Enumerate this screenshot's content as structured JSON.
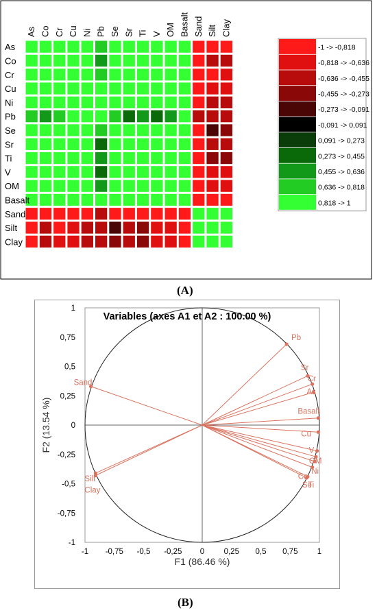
{
  "panel_labels": {
    "a": "(A)",
    "b": "(B)"
  },
  "chart_data": [
    {
      "type": "heatmap",
      "title": "",
      "columns": [
        "As",
        "Co",
        "Cr",
        "Cu",
        "Ni",
        "Pb",
        "Se",
        "Sr",
        "Ti",
        "V",
        "OM",
        "Basalt",
        "Sand",
        "Silt",
        "Clay"
      ],
      "rows": [
        "As",
        "Co",
        "Cr",
        "Cu",
        "Ni",
        "Pb",
        "Se",
        "Sr",
        "Ti",
        "V",
        "OM",
        "Basalt",
        "Sand",
        "Silt",
        "Clay"
      ],
      "values": [
        [
          1,
          0.92,
          0.93,
          0.93,
          0.92,
          0.8,
          0.9,
          0.93,
          0.91,
          0.93,
          0.93,
          0.93,
          -0.9,
          -0.85,
          -0.85
        ],
        [
          0.92,
          1,
          0.92,
          0.88,
          0.92,
          0.5,
          0.9,
          0.92,
          0.9,
          0.92,
          0.92,
          0.92,
          -0.9,
          -0.55,
          -0.55
        ],
        [
          0.93,
          0.92,
          1,
          0.9,
          0.92,
          0.78,
          0.92,
          0.93,
          0.91,
          0.93,
          0.92,
          0.93,
          -0.9,
          -0.82,
          -0.8
        ],
        [
          0.93,
          0.88,
          0.9,
          1,
          0.92,
          0.88,
          0.92,
          0.92,
          0.9,
          0.92,
          0.92,
          0.92,
          -0.9,
          -0.7,
          -0.7
        ],
        [
          0.92,
          0.92,
          0.92,
          0.92,
          1,
          0.85,
          0.92,
          0.92,
          0.9,
          0.92,
          0.92,
          0.92,
          -0.9,
          -0.58,
          -0.58
        ],
        [
          0.8,
          0.5,
          0.78,
          0.88,
          0.85,
          1,
          0.72,
          0.45,
          0.52,
          0.45,
          0.6,
          0.82,
          -0.55,
          -0.58,
          -0.55
        ],
        [
          0.9,
          0.9,
          0.92,
          0.92,
          0.92,
          0.72,
          1,
          0.9,
          0.92,
          0.92,
          0.92,
          0.9,
          -0.92,
          -0.25,
          -0.45
        ],
        [
          0.93,
          0.92,
          0.93,
          0.92,
          0.92,
          0.45,
          0.9,
          1,
          0.88,
          0.92,
          0.92,
          0.92,
          -0.9,
          -0.6,
          -0.6
        ],
        [
          0.91,
          0.9,
          0.91,
          0.9,
          0.9,
          0.52,
          0.92,
          0.88,
          1,
          0.9,
          0.9,
          0.9,
          -0.9,
          -0.4,
          -0.4
        ],
        [
          0.93,
          0.92,
          0.93,
          0.92,
          0.92,
          0.45,
          0.92,
          0.92,
          0.9,
          1,
          0.92,
          0.92,
          -0.9,
          -0.7,
          -0.7
        ],
        [
          0.93,
          0.92,
          0.92,
          0.92,
          0.92,
          0.6,
          0.92,
          0.92,
          0.9,
          0.92,
          1,
          0.92,
          -0.9,
          -0.65,
          -0.65
        ],
        [
          0.93,
          0.92,
          0.93,
          0.92,
          0.92,
          0.82,
          0.9,
          0.92,
          0.9,
          0.92,
          0.92,
          1,
          -0.9,
          -0.82,
          -0.82
        ],
        [
          -0.9,
          -0.9,
          -0.9,
          -0.9,
          -0.9,
          -0.55,
          -0.92,
          -0.9,
          -0.9,
          -0.9,
          -0.9,
          -0.9,
          1,
          0.85,
          0.88
        ],
        [
          -0.85,
          -0.55,
          -0.82,
          -0.7,
          -0.58,
          -0.58,
          -0.25,
          -0.6,
          -0.4,
          -0.7,
          -0.65,
          -0.82,
          0.85,
          1,
          0.95
        ],
        [
          -0.85,
          -0.55,
          -0.8,
          -0.7,
          -0.58,
          -0.55,
          -0.45,
          -0.6,
          -0.4,
          -0.7,
          -0.65,
          -0.82,
          0.88,
          0.95,
          1
        ]
      ],
      "legend": [
        {
          "label": "-1 -> -0,818",
          "color": "#ff1a1a"
        },
        {
          "label": "-0,818 -> -0,636",
          "color": "#e01010"
        },
        {
          "label": "-0,636 -> -0,455",
          "color": "#b80c0c"
        },
        {
          "label": "-0,455 -> -0,273",
          "color": "#8a0808"
        },
        {
          "label": "-0,273 -> -0,091",
          "color": "#4a0505"
        },
        {
          "label": "-0,091 -> 0,091",
          "color": "#000000"
        },
        {
          "label": "0,091 -> 0,273",
          "color": "#0a3d0a"
        },
        {
          "label": "0,273 -> 0,455",
          "color": "#0a6a0a"
        },
        {
          "label": "0,455 -> 0,636",
          "color": "#12991a"
        },
        {
          "label": "0,636 -> 0,818",
          "color": "#22cc22"
        },
        {
          "label": "0,818 -> 1",
          "color": "#33ff33"
        }
      ],
      "legend_placement": "right"
    },
    {
      "type": "scatter",
      "title": "Variables (axes A1 et A2 : 100.00 %)",
      "xlabel": "F1 (86.46 %)",
      "ylabel": "F2 (13.54 %)",
      "xlim": [
        -1,
        1
      ],
      "ylim": [
        -1,
        1
      ],
      "x_ticks": [
        "-1",
        "-0,75",
        "-0,5",
        "-0,25",
        "0",
        "0,25",
        "0,5",
        "0,75",
        "1"
      ],
      "y_ticks": [
        "1",
        "0,75",
        "0,5",
        "0,25",
        "0",
        "-0,25",
        "-0,5",
        "-0,75",
        "-1"
      ],
      "grid": false,
      "correlation_circle": true,
      "series": [
        {
          "points": [
            {
              "label": "Pb",
              "x": 0.72,
              "y": 0.69
            },
            {
              "label": "Sr",
              "x": 0.9,
              "y": 0.42
            },
            {
              "label": "Cr",
              "x": 0.94,
              "y": 0.35
            },
            {
              "label": "As",
              "x": 0.95,
              "y": 0.28
            },
            {
              "label": "Basalt",
              "x": 0.99,
              "y": 0.06
            },
            {
              "label": "Cu",
              "x": 0.99,
              "y": -0.06
            },
            {
              "label": "V",
              "x": 0.98,
              "y": -0.22
            },
            {
              "label": "OM",
              "x": 0.97,
              "y": -0.27
            },
            {
              "label": "Ni",
              "x": 0.96,
              "y": -0.31
            },
            {
              "label": "Co",
              "x": 0.94,
              "y": -0.36
            },
            {
              "label": "Ti",
              "x": 0.89,
              "y": -0.45
            },
            {
              "label": "Se",
              "x": 0.9,
              "y": -0.44
            },
            {
              "label": "Sand",
              "x": -0.95,
              "y": 0.33
            },
            {
              "label": "Silt",
              "x": -0.91,
              "y": -0.41
            },
            {
              "label": "Clay",
              "x": -0.91,
              "y": -0.43
            }
          ]
        }
      ]
    }
  ]
}
